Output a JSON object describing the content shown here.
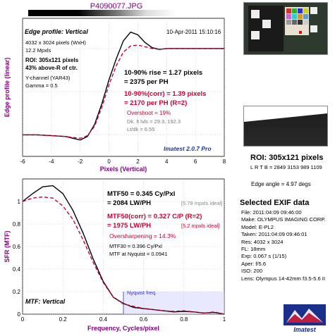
{
  "file_title": "P4090077.JPG",
  "colors": {
    "measured": "#000000",
    "corrected": "#cc0033",
    "accent_text": "#800080",
    "nyquist": "#3333cc",
    "fill": "#d8d8ff"
  },
  "top": {
    "panel_title": "Edge profile: Vertical",
    "date": "10-Apr-2011 15:10:16",
    "info_lines": [
      "4032 x 3024 pixels (WxH)",
      "12.2 Mpxls"
    ],
    "roi_lines": [
      "ROI: 305x121 pixels",
      "43% above-R of ctr."
    ],
    "channel_lines": [
      "Y-channel  (YAR43)",
      "Gamma = 0.5"
    ],
    "rise_line1": "10-90% rise = 1.27 pixels",
    "rise_line2": "= 2375 per PH",
    "corr_line1": "10-90%(corr) = 1.39 pixels",
    "corr_line2": "= 2170 per PH  (R=2)",
    "overshoot": "Overshoot = 19%",
    "levels": "Dk, lt lvls = 29.3, 192.3",
    "lt_dk": "Lt/dk = 6.55",
    "version": "Imatest 2.0.7 Pro",
    "ylabel": "Edge profile (linear)",
    "xlabel": "Pixels (Vertical)"
  },
  "bottom": {
    "mtf50": "MTF50 = 0.345 Cy/Pxl",
    "mtf50_lw": "= 2084 LW/PH",
    "mtf50_ideal": "[5.79 mpxls ideal]",
    "mtf50c": "MTF50(corr) = 0.327 C/P  (R=2)",
    "mtf50c_lw": "= 1975 LW/PH",
    "mtf50c_ideal": "[5.2 mpxls ideal]",
    "oversharp": "Oversharpening = 14.3%",
    "mtf30": "MTF30 = 0.396 Cy/Pxl",
    "mtf_nyq": "MTF at Nyquist = 0.0941",
    "nyquist_label": "Nyquist freq.",
    "panel_title": "MTF: Vertical",
    "ylabel": "SFR (MTF)",
    "xlabel": "Frequency, Cycles/pixel"
  },
  "roi": {
    "title": "ROI: 305x121 pixels",
    "coords": "L R T B = 2849 3153  989 1109",
    "edge_angle": "Edge angle = 4.97 degs"
  },
  "exif": {
    "title": "Selected EXIF data",
    "lines": [
      "File:  2011:04:09 09:46:00",
      "Make:  OLYMPUS IMAGING CORP.",
      "Model:  E-PL2",
      "Taken:  2011:04:09 09:46:01",
      "Res:   4032 x 3024",
      "FL:   18mm",
      "Exp:   0.067 s  (1/15)",
      "Aper:   f/5.6",
      "ISO:   200",
      "Lens:  Olympus 14-42mm f3.5-5.6 II"
    ]
  },
  "logo_text": "Imatest",
  "chart_data": [
    {
      "type": "line",
      "title": "Edge profile: Vertical",
      "xlabel": "Pixels (Vertical)",
      "ylabel": "Edge profile (linear)",
      "xlim": [
        -6,
        8
      ],
      "xticks": [
        -6,
        -4,
        -2,
        0,
        2,
        4,
        6,
        8
      ],
      "grid": true,
      "series": [
        {
          "style": "solid",
          "color": "#000000",
          "x": [
            -6,
            -5,
            -4,
            -3,
            -2.5,
            -2,
            -1.5,
            -1,
            -0.5,
            0,
            0.5,
            1,
            1.5,
            2,
            2.5,
            3,
            3.5,
            4,
            5,
            6,
            7,
            8
          ],
          "y": [
            0.0,
            0.0,
            -0.01,
            -0.02,
            -0.04,
            -0.06,
            -0.02,
            0.12,
            0.36,
            0.64,
            0.88,
            1.09,
            1.19,
            1.16,
            1.07,
            1.01,
            0.99,
            1.0,
            1.0,
            1.0,
            1.0,
            1.0
          ]
        },
        {
          "style": "dashed",
          "color": "#cc0033",
          "x": [
            -6,
            -5,
            -4,
            -3,
            -2.5,
            -2,
            -1.5,
            -1,
            -0.5,
            0,
            0.5,
            1,
            1.5,
            2,
            2.5,
            3,
            3.5,
            4,
            5,
            6,
            7,
            8
          ],
          "y": [
            0.0,
            0.0,
            -0.01,
            -0.02,
            -0.03,
            -0.04,
            -0.01,
            0.1,
            0.32,
            0.58,
            0.8,
            0.96,
            1.03,
            1.04,
            1.02,
            1.0,
            0.99,
            1.0,
            1.0,
            1.0,
            1.0,
            1.0
          ]
        }
      ]
    },
    {
      "type": "line",
      "title": "MTF: Vertical",
      "xlabel": "Frequency, Cycles/pixel",
      "ylabel": "SFR (MTF)",
      "xlim": [
        0,
        1
      ],
      "ylim": [
        0,
        1.2
      ],
      "xticks": [
        0,
        0.2,
        0.4,
        0.6,
        0.8,
        1
      ],
      "yticks": [
        0,
        0.2,
        0.4,
        0.6,
        0.8,
        1
      ],
      "grid": true,
      "nyquist": 0.5,
      "series": [
        {
          "style": "solid",
          "color": "#000000",
          "x": [
            0,
            0.05,
            0.1,
            0.15,
            0.2,
            0.25,
            0.3,
            0.35,
            0.4,
            0.45,
            0.5,
            0.55,
            0.6,
            0.65,
            0.7,
            0.75,
            0.8,
            0.85,
            0.9,
            0.95,
            1.0
          ],
          "y": [
            1.0,
            1.07,
            1.13,
            1.14,
            1.07,
            0.92,
            0.72,
            0.49,
            0.29,
            0.15,
            0.095,
            0.06,
            0.05,
            0.04,
            0.03,
            0.02,
            0.025,
            0.02,
            0.01,
            0.015,
            0.0
          ]
        },
        {
          "style": "dashed",
          "color": "#cc0033",
          "x": [
            0,
            0.05,
            0.1,
            0.15,
            0.2,
            0.25,
            0.3,
            0.35,
            0.4,
            0.45,
            0.5,
            0.55,
            0.6,
            0.65,
            0.7,
            0.75,
            0.8,
            0.85,
            0.9,
            0.95,
            1.0
          ],
          "y": [
            1.0,
            1.03,
            1.04,
            1.03,
            0.96,
            0.84,
            0.66,
            0.46,
            0.28,
            0.15,
            0.09,
            0.07,
            0.05,
            0.04,
            0.03,
            0.025,
            0.03,
            0.02,
            0.01,
            0.02,
            0.0
          ]
        }
      ]
    }
  ]
}
